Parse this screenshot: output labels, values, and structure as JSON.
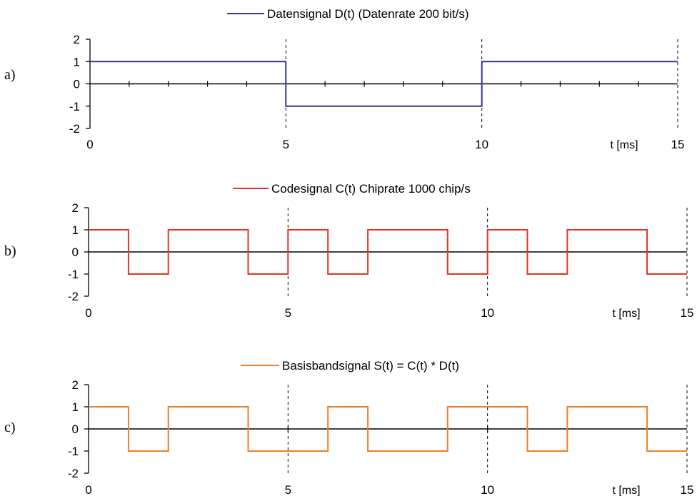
{
  "chart_data": [
    {
      "type": "line",
      "step": true,
      "panel_label": "a)",
      "legend": "Datensignal  D(t)  (Datenrate 200 bit/s)",
      "series": [
        {
          "name": "Datensignal  D(t)  (Datenrate 200 bit/s)",
          "color": "#333399",
          "x": [
            0,
            5,
            5,
            10,
            10,
            15
          ],
          "y": [
            1,
            1,
            -1,
            -1,
            1,
            1
          ]
        }
      ],
      "xlim": [
        0,
        15
      ],
      "ylim": [
        -2,
        2
      ],
      "x_ticks": [
        0,
        5,
        10,
        15
      ],
      "y_ticks": [
        2,
        1,
        0,
        -1,
        -2
      ],
      "minor_ticks_on_zero_line": [
        1,
        2,
        3,
        4,
        5,
        6,
        7,
        8,
        9,
        10,
        11,
        12,
        13,
        14
      ],
      "dashed_verticals": [
        5,
        10,
        15
      ],
      "x_unit_label": "t [ms]"
    },
    {
      "type": "line",
      "step": true,
      "panel_label": "b)",
      "legend": "Codesignal C(t)  Chiprate 1000 chip/s",
      "series": [
        {
          "name": "Codesignal C(t)  Chiprate 1000 chip/s",
          "color": "#e8321e",
          "x": [
            0,
            1,
            1,
            2,
            2,
            4,
            4,
            5,
            5,
            6,
            6,
            7,
            7,
            9,
            9,
            10,
            10,
            11,
            11,
            12,
            12,
            14,
            14,
            15
          ],
          "y": [
            1,
            1,
            -1,
            -1,
            1,
            1,
            -1,
            -1,
            1,
            1,
            -1,
            -1,
            1,
            1,
            -1,
            -1,
            1,
            1,
            -1,
            -1,
            1,
            1,
            -1,
            -1
          ]
        }
      ],
      "xlim": [
        0,
        15
      ],
      "ylim": [
        -2,
        2
      ],
      "x_ticks": [
        0,
        5,
        10,
        15
      ],
      "y_ticks": [
        2,
        1,
        0,
        -1,
        -2
      ],
      "minor_ticks_on_zero_line": [
        5,
        10
      ],
      "dashed_verticals": [
        5,
        10,
        15
      ],
      "x_unit_label": "t [ms]"
    },
    {
      "type": "line",
      "step": true,
      "panel_label": "c)",
      "legend": "Basisbandsignal    S(t) = C(t) * D(t)",
      "series": [
        {
          "name": "Basisbandsignal    S(t) = C(t) * D(t)",
          "color": "#ee7d2a",
          "x": [
            0,
            1,
            1,
            2,
            2,
            4,
            4,
            6,
            6,
            7,
            7,
            9,
            9,
            11,
            11,
            12,
            12,
            14,
            14,
            15
          ],
          "y": [
            1,
            1,
            -1,
            -1,
            1,
            1,
            -1,
            -1,
            1,
            1,
            -1,
            -1,
            1,
            1,
            -1,
            -1,
            1,
            1,
            -1,
            -1
          ]
        }
      ],
      "xlim": [
        0,
        15
      ],
      "ylim": [
        -2,
        2
      ],
      "x_ticks": [
        0,
        5,
        10,
        15
      ],
      "y_ticks": [
        2,
        1,
        0,
        -1,
        -2
      ],
      "minor_ticks_on_zero_line": [
        5,
        10
      ],
      "dashed_verticals": [
        5,
        10,
        15
      ],
      "x_unit_label": "t [ms]"
    }
  ]
}
